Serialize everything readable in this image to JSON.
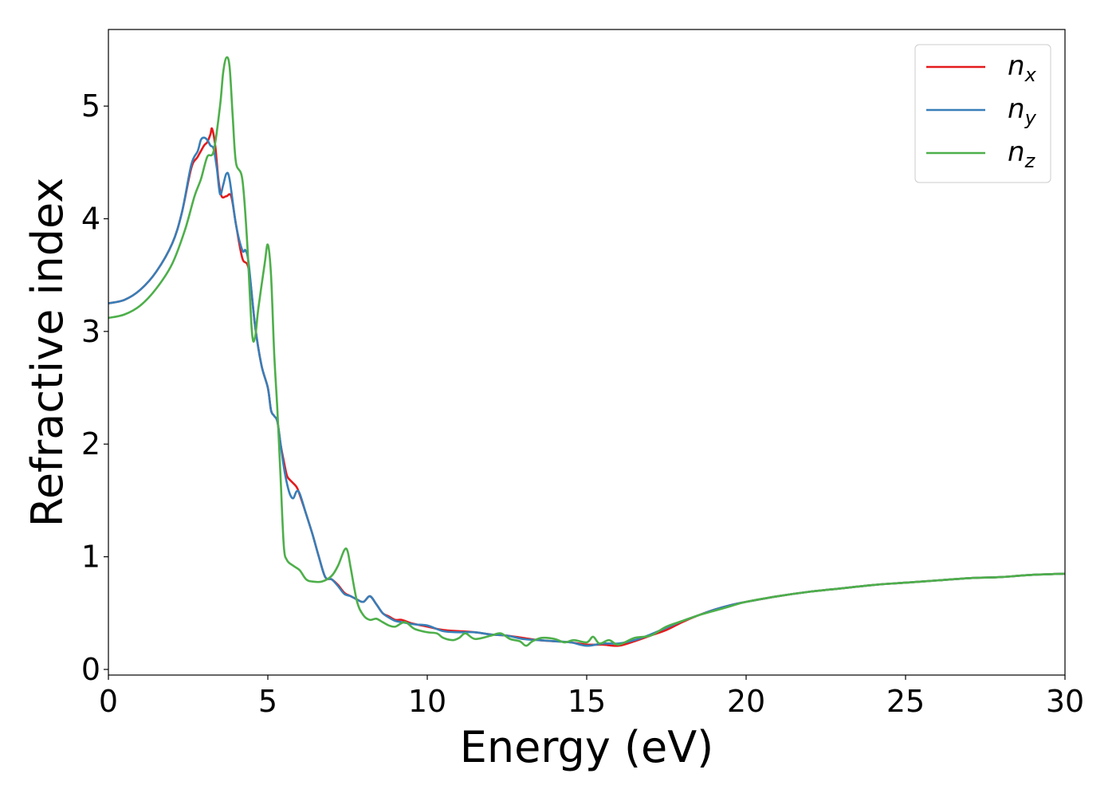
{
  "chart_data": {
    "type": "line",
    "xlabel": "Energy (eV)",
    "ylabel": "Refractive index",
    "xlim": [
      0,
      30
    ],
    "ylim": [
      -0.05,
      5.68
    ],
    "xticks": [
      0,
      5,
      10,
      15,
      20,
      25,
      30
    ],
    "yticks": [
      0,
      1,
      2,
      3,
      4,
      5
    ],
    "grid": false,
    "legend_position": "top-right",
    "series": [
      {
        "name": "n_x",
        "legend_base": "n",
        "legend_sub": "x",
        "color": "#e41a1c",
        "points": [
          [
            0,
            3.25
          ],
          [
            0.5,
            3.28
          ],
          [
            1.0,
            3.37
          ],
          [
            1.5,
            3.53
          ],
          [
            2.0,
            3.78
          ],
          [
            2.3,
            4.05
          ],
          [
            2.6,
            4.45
          ],
          [
            2.8,
            4.55
          ],
          [
            3.0,
            4.65
          ],
          [
            3.1,
            4.68
          ],
          [
            3.2,
            4.75
          ],
          [
            3.25,
            4.8
          ],
          [
            3.35,
            4.65
          ],
          [
            3.45,
            4.35
          ],
          [
            3.55,
            4.2
          ],
          [
            3.7,
            4.2
          ],
          [
            3.85,
            4.2
          ],
          [
            4.0,
            3.95
          ],
          [
            4.2,
            3.65
          ],
          [
            4.4,
            3.55
          ],
          [
            4.6,
            3.05
          ],
          [
            4.8,
            2.7
          ],
          [
            5.0,
            2.5
          ],
          [
            5.1,
            2.3
          ],
          [
            5.2,
            2.25
          ],
          [
            5.3,
            2.2
          ],
          [
            5.4,
            2.0
          ],
          [
            5.5,
            1.85
          ],
          [
            5.6,
            1.72
          ],
          [
            5.7,
            1.68
          ],
          [
            5.9,
            1.62
          ],
          [
            6.0,
            1.55
          ],
          [
            6.2,
            1.38
          ],
          [
            6.4,
            1.2
          ],
          [
            6.6,
            1.0
          ],
          [
            6.8,
            0.82
          ],
          [
            7.0,
            0.8
          ],
          [
            7.2,
            0.75
          ],
          [
            7.4,
            0.68
          ],
          [
            7.6,
            0.65
          ],
          [
            7.8,
            0.62
          ],
          [
            8.0,
            0.6
          ],
          [
            8.2,
            0.65
          ],
          [
            8.4,
            0.58
          ],
          [
            8.6,
            0.5
          ],
          [
            8.8,
            0.47
          ],
          [
            9.0,
            0.44
          ],
          [
            9.2,
            0.44
          ],
          [
            9.5,
            0.41
          ],
          [
            10.0,
            0.38
          ],
          [
            10.5,
            0.35
          ],
          [
            11.0,
            0.34
          ],
          [
            11.5,
            0.33
          ],
          [
            12.0,
            0.31
          ],
          [
            12.5,
            0.3
          ],
          [
            13.0,
            0.28
          ],
          [
            13.5,
            0.26
          ],
          [
            14.0,
            0.25
          ],
          [
            14.5,
            0.24
          ],
          [
            15.0,
            0.22
          ],
          [
            15.5,
            0.22
          ],
          [
            16.0,
            0.21
          ],
          [
            16.5,
            0.25
          ],
          [
            17.0,
            0.3
          ],
          [
            17.5,
            0.35
          ],
          [
            18.0,
            0.42
          ],
          [
            18.5,
            0.48
          ],
          [
            19.0,
            0.53
          ],
          [
            19.5,
            0.57
          ],
          [
            20.0,
            0.6
          ],
          [
            21.0,
            0.65
          ],
          [
            22.0,
            0.69
          ],
          [
            23.0,
            0.72
          ],
          [
            24.0,
            0.75
          ],
          [
            25.0,
            0.77
          ],
          [
            26.0,
            0.79
          ],
          [
            27.0,
            0.81
          ],
          [
            28.0,
            0.82
          ],
          [
            29.0,
            0.84
          ],
          [
            30.0,
            0.85
          ]
        ]
      },
      {
        "name": "n_y",
        "legend_base": "n",
        "legend_sub": "y",
        "color": "#377eb8",
        "points": [
          [
            0,
            3.25
          ],
          [
            0.5,
            3.28
          ],
          [
            1.0,
            3.37
          ],
          [
            1.5,
            3.53
          ],
          [
            2.0,
            3.78
          ],
          [
            2.3,
            4.05
          ],
          [
            2.6,
            4.48
          ],
          [
            2.8,
            4.6
          ],
          [
            2.9,
            4.7
          ],
          [
            3.0,
            4.72
          ],
          [
            3.1,
            4.7
          ],
          [
            3.2,
            4.65
          ],
          [
            3.3,
            4.62
          ],
          [
            3.4,
            4.45
          ],
          [
            3.5,
            4.22
          ],
          [
            3.6,
            4.3
          ],
          [
            3.7,
            4.4
          ],
          [
            3.8,
            4.35
          ],
          [
            4.0,
            3.95
          ],
          [
            4.2,
            3.72
          ],
          [
            4.3,
            3.72
          ],
          [
            4.4,
            3.6
          ],
          [
            4.6,
            3.05
          ],
          [
            4.8,
            2.7
          ],
          [
            5.0,
            2.5
          ],
          [
            5.1,
            2.3
          ],
          [
            5.2,
            2.25
          ],
          [
            5.3,
            2.2
          ],
          [
            5.4,
            2.0
          ],
          [
            5.5,
            1.8
          ],
          [
            5.6,
            1.65
          ],
          [
            5.7,
            1.55
          ],
          [
            5.8,
            1.52
          ],
          [
            5.9,
            1.58
          ],
          [
            6.0,
            1.56
          ],
          [
            6.2,
            1.38
          ],
          [
            6.4,
            1.2
          ],
          [
            6.6,
            1.0
          ],
          [
            6.8,
            0.82
          ],
          [
            7.0,
            0.8
          ],
          [
            7.2,
            0.74
          ],
          [
            7.4,
            0.67
          ],
          [
            7.6,
            0.65
          ],
          [
            7.8,
            0.62
          ],
          [
            8.0,
            0.6
          ],
          [
            8.2,
            0.65
          ],
          [
            8.4,
            0.58
          ],
          [
            8.6,
            0.5
          ],
          [
            8.8,
            0.46
          ],
          [
            9.0,
            0.43
          ],
          [
            9.2,
            0.42
          ],
          [
            9.6,
            0.4
          ],
          [
            10.0,
            0.39
          ],
          [
            10.5,
            0.34
          ],
          [
            11.0,
            0.33
          ],
          [
            11.5,
            0.33
          ],
          [
            12.0,
            0.31
          ],
          [
            12.5,
            0.3
          ],
          [
            13.0,
            0.27
          ],
          [
            13.5,
            0.26
          ],
          [
            14.0,
            0.25
          ],
          [
            14.5,
            0.24
          ],
          [
            15.0,
            0.21
          ],
          [
            15.5,
            0.23
          ],
          [
            16.0,
            0.23
          ],
          [
            16.5,
            0.26
          ],
          [
            17.0,
            0.31
          ],
          [
            17.5,
            0.37
          ],
          [
            18.0,
            0.43
          ],
          [
            18.5,
            0.48
          ],
          [
            19.0,
            0.53
          ],
          [
            19.5,
            0.57
          ],
          [
            20.0,
            0.6
          ],
          [
            21.0,
            0.65
          ],
          [
            22.0,
            0.69
          ],
          [
            23.0,
            0.72
          ],
          [
            24.0,
            0.75
          ],
          [
            25.0,
            0.77
          ],
          [
            26.0,
            0.79
          ],
          [
            27.0,
            0.81
          ],
          [
            28.0,
            0.82
          ],
          [
            29.0,
            0.84
          ],
          [
            30.0,
            0.85
          ]
        ]
      },
      {
        "name": "n_z",
        "legend_base": "n",
        "legend_sub": "z",
        "color": "#4daf4a",
        "points": [
          [
            0,
            3.12
          ],
          [
            0.5,
            3.15
          ],
          [
            1.0,
            3.23
          ],
          [
            1.5,
            3.38
          ],
          [
            2.0,
            3.6
          ],
          [
            2.4,
            3.9
          ],
          [
            2.7,
            4.2
          ],
          [
            2.9,
            4.35
          ],
          [
            3.1,
            4.55
          ],
          [
            3.3,
            4.6
          ],
          [
            3.5,
            5.0
          ],
          [
            3.6,
            5.3
          ],
          [
            3.7,
            5.43
          ],
          [
            3.8,
            5.35
          ],
          [
            3.9,
            4.9
          ],
          [
            4.0,
            4.5
          ],
          [
            4.2,
            4.35
          ],
          [
            4.35,
            3.8
          ],
          [
            4.5,
            3.0
          ],
          [
            4.6,
            2.95
          ],
          [
            4.7,
            3.2
          ],
          [
            4.9,
            3.6
          ],
          [
            5.0,
            3.77
          ],
          [
            5.1,
            3.5
          ],
          [
            5.2,
            2.8
          ],
          [
            5.3,
            2.3
          ],
          [
            5.4,
            1.7
          ],
          [
            5.5,
            1.1
          ],
          [
            5.6,
            0.97
          ],
          [
            5.8,
            0.92
          ],
          [
            6.0,
            0.88
          ],
          [
            6.2,
            0.8
          ],
          [
            6.4,
            0.78
          ],
          [
            6.7,
            0.78
          ],
          [
            7.0,
            0.83
          ],
          [
            7.2,
            0.92
          ],
          [
            7.4,
            1.06
          ],
          [
            7.5,
            1.05
          ],
          [
            7.6,
            0.9
          ],
          [
            7.8,
            0.6
          ],
          [
            8.0,
            0.48
          ],
          [
            8.2,
            0.44
          ],
          [
            8.4,
            0.45
          ],
          [
            8.6,
            0.42
          ],
          [
            8.8,
            0.39
          ],
          [
            9.0,
            0.38
          ],
          [
            9.3,
            0.42
          ],
          [
            9.6,
            0.36
          ],
          [
            10.0,
            0.33
          ],
          [
            10.3,
            0.32
          ],
          [
            10.5,
            0.28
          ],
          [
            10.8,
            0.26
          ],
          [
            11.0,
            0.28
          ],
          [
            11.2,
            0.32
          ],
          [
            11.5,
            0.27
          ],
          [
            12.0,
            0.3
          ],
          [
            12.3,
            0.32
          ],
          [
            12.6,
            0.27
          ],
          [
            12.9,
            0.25
          ],
          [
            13.1,
            0.21
          ],
          [
            13.3,
            0.25
          ],
          [
            13.6,
            0.28
          ],
          [
            14.0,
            0.27
          ],
          [
            14.3,
            0.24
          ],
          [
            14.6,
            0.26
          ],
          [
            15.0,
            0.24
          ],
          [
            15.2,
            0.29
          ],
          [
            15.4,
            0.23
          ],
          [
            15.7,
            0.26
          ],
          [
            16.0,
            0.22
          ],
          [
            16.5,
            0.28
          ],
          [
            17.0,
            0.3
          ],
          [
            17.5,
            0.38
          ],
          [
            18.0,
            0.43
          ],
          [
            18.5,
            0.48
          ],
          [
            19.0,
            0.52
          ],
          [
            19.5,
            0.56
          ],
          [
            20.0,
            0.6
          ],
          [
            21.0,
            0.65
          ],
          [
            22.0,
            0.69
          ],
          [
            23.0,
            0.72
          ],
          [
            24.0,
            0.75
          ],
          [
            25.0,
            0.77
          ],
          [
            26.0,
            0.79
          ],
          [
            27.0,
            0.81
          ],
          [
            28.0,
            0.82
          ],
          [
            29.0,
            0.84
          ],
          [
            30.0,
            0.85
          ]
        ]
      }
    ]
  }
}
